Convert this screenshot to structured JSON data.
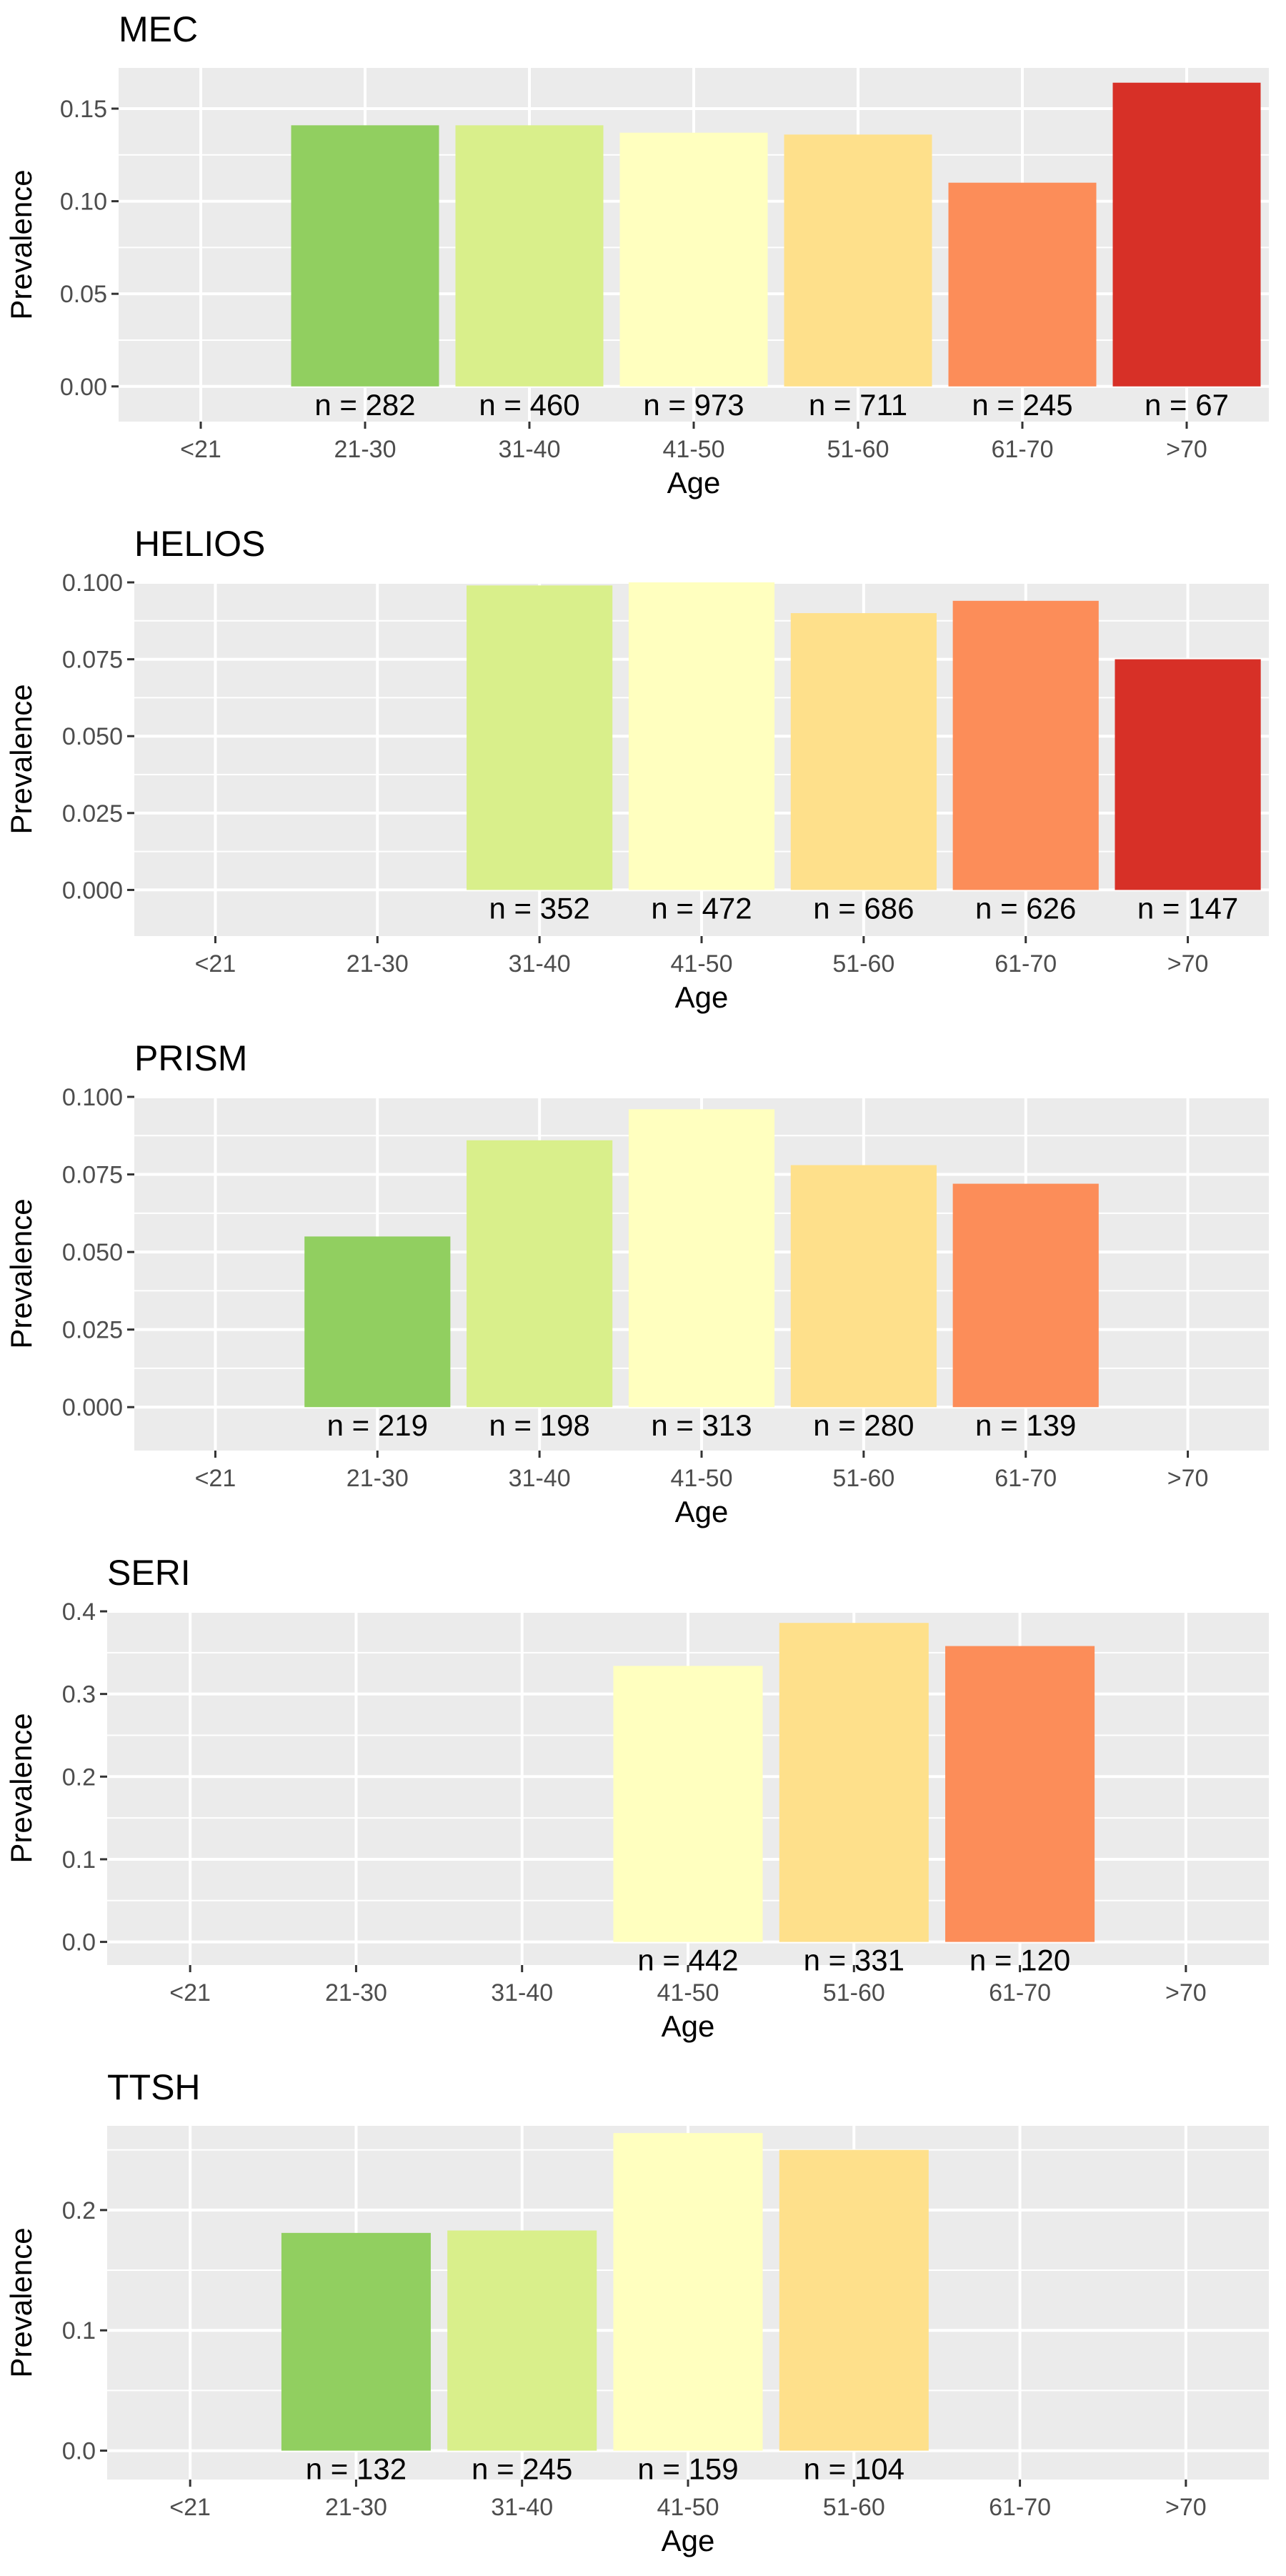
{
  "age_groups": [
    "<21",
    "21-30",
    "31-40",
    "41-50",
    "51-60",
    "61-70",
    ">70"
  ],
  "palette": {
    "<21": "#1A9850",
    "21-30": "#91CF60",
    "31-40": "#D9EF8B",
    "41-50": "#FFFFBF",
    "51-60": "#FEE08B",
    "61-70": "#FC8D59",
    ">70": "#D73027"
  },
  "chart_data": [
    {
      "type": "bar",
      "title": "MEC",
      "xlabel": "Age",
      "ylabel": "Prevalence",
      "categories": [
        "<21",
        "21-30",
        "31-40",
        "41-50",
        "51-60",
        "61-70",
        ">70"
      ],
      "values": [
        null,
        0.141,
        0.141,
        0.137,
        0.136,
        0.11,
        0.164
      ],
      "n_labels": [
        null,
        "n = 282",
        "n = 460",
        "n = 973",
        "n = 711",
        "n = 245",
        "n = 67"
      ],
      "ylim": [
        -0.019,
        0.172
      ],
      "yticks": [
        0.0,
        0.05,
        0.1,
        0.15
      ],
      "ytick_labels": [
        "0.00",
        "0.05",
        "0.10",
        "0.15"
      ],
      "grid": true,
      "legend": "none"
    },
    {
      "type": "bar",
      "title": "HELIOS",
      "xlabel": "Age",
      "ylabel": "Prevalence",
      "categories": [
        "<21",
        "21-30",
        "31-40",
        "41-50",
        "51-60",
        "61-70",
        ">70"
      ],
      "values": [
        null,
        null,
        0.099,
        0.1,
        0.09,
        0.094,
        0.075
      ],
      "n_labels": [
        null,
        null,
        "n = 352",
        "n = 472",
        "n = 686",
        "n = 626",
        "n = 147"
      ],
      "ylim": [
        -0.015,
        0.1
      ],
      "yticks": [
        0.0,
        0.025,
        0.05,
        0.075,
        0.1
      ],
      "ytick_labels": [
        "0.000",
        "0.025",
        "0.050",
        "0.075",
        "0.100"
      ],
      "grid": true,
      "legend": "none"
    },
    {
      "type": "bar",
      "title": "PRISM",
      "xlabel": "Age",
      "ylabel": "Prevalence",
      "categories": [
        "<21",
        "21-30",
        "31-40",
        "41-50",
        "51-60",
        "61-70",
        ">70"
      ],
      "values": [
        null,
        0.055,
        0.086,
        0.096,
        0.078,
        0.072,
        null
      ],
      "n_labels": [
        null,
        "n = 219",
        "n = 198",
        "n = 313",
        "n = 280",
        "n = 139",
        null
      ],
      "ylim": [
        -0.014,
        0.1
      ],
      "yticks": [
        0.0,
        0.025,
        0.05,
        0.075,
        0.1
      ],
      "ytick_labels": [
        "0.000",
        "0.025",
        "0.050",
        "0.075",
        "0.100"
      ],
      "grid": true,
      "legend": "none"
    },
    {
      "type": "bar",
      "title": "SERI",
      "xlabel": "Age",
      "ylabel": "Prevalence",
      "categories": [
        "<21",
        "21-30",
        "31-40",
        "41-50",
        "51-60",
        "61-70",
        ">70"
      ],
      "values": [
        null,
        null,
        null,
        0.334,
        0.386,
        0.358,
        null
      ],
      "n_labels": [
        null,
        null,
        null,
        "n = 442",
        "n = 331",
        "n = 120",
        null
      ],
      "ylim": [
        -0.028,
        0.4
      ],
      "yticks": [
        0.0,
        0.1,
        0.2,
        0.3,
        0.4
      ],
      "ytick_labels": [
        "0.0",
        "0.1",
        "0.2",
        "0.3",
        "0.4"
      ],
      "grid": true,
      "legend": "none"
    },
    {
      "type": "bar",
      "title": "TTSH",
      "xlabel": "Age",
      "ylabel": "Prevalence",
      "categories": [
        "<21",
        "21-30",
        "31-40",
        "41-50",
        "51-60",
        "61-70",
        ">70"
      ],
      "values": [
        null,
        0.181,
        0.183,
        0.264,
        0.25,
        null,
        null
      ],
      "n_labels": [
        null,
        "n = 132",
        "n = 245",
        "n = 159",
        "n = 104",
        null,
        null
      ],
      "ylim": [
        -0.024,
        0.27
      ],
      "yticks": [
        0.0,
        0.1,
        0.2
      ],
      "ytick_labels": [
        "0.0",
        "0.1",
        "0.2"
      ],
      "grid": true,
      "legend": "none"
    }
  ]
}
